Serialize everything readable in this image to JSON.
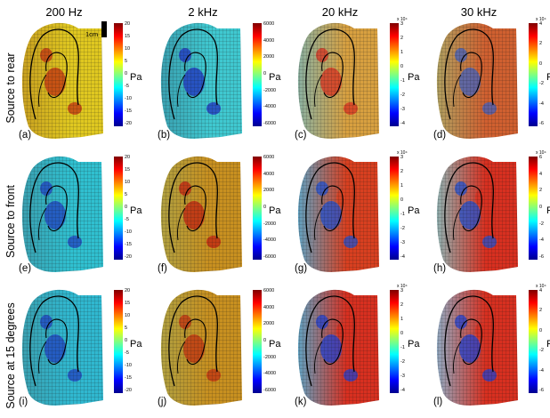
{
  "columns": [
    "200 Hz",
    "2 kHz",
    "20 kHz",
    "30 kHz"
  ],
  "rows": [
    "Source to rear",
    "Source to front",
    "Source at 15 degrees"
  ],
  "scale_bar": "1cm",
  "unit": "Pa",
  "colormap": [
    "#00008f",
    "#0000ff",
    "#0080ff",
    "#00ffff",
    "#80ff80",
    "#ffff00",
    "#ff8000",
    "#ff0000",
    "#800000"
  ],
  "colorbars": [
    {
      "ticks": [
        "20",
        "15",
        "10",
        "5",
        "0",
        "-5",
        "-10",
        "-15",
        "-20"
      ],
      "exponent": ""
    },
    {
      "ticks": [
        "6000",
        "4000",
        "2000",
        "0",
        "-2000",
        "-4000",
        "-6000"
      ],
      "exponent": ""
    },
    {
      "ticks": [
        "3",
        "2",
        "1",
        "0",
        "-1",
        "-2",
        "-3",
        "-4"
      ],
      "exponent": "x 10⁴"
    },
    {
      "ticks": [
        "4",
        "2",
        "0",
        "-2",
        "-4",
        "-6"
      ],
      "exponent": "x 10⁴"
    },
    {
      "ticks": [
        "20",
        "15",
        "10",
        "5",
        "0",
        "-5",
        "-10",
        "-15",
        "-20"
      ],
      "exponent": ""
    },
    {
      "ticks": [
        "6000",
        "4000",
        "2000",
        "0",
        "-2000",
        "-4000",
        "-6000"
      ],
      "exponent": ""
    },
    {
      "ticks": [
        "3",
        "2",
        "1",
        "0",
        "-1",
        "-2",
        "-3",
        "-4"
      ],
      "exponent": "x 10⁴"
    },
    {
      "ticks": [
        "6",
        "4",
        "2",
        "0",
        "-2",
        "-4",
        "-6"
      ],
      "exponent": "x 10⁴"
    },
    {
      "ticks": [
        "20",
        "15",
        "10",
        "5",
        "0",
        "-5",
        "-10",
        "-15",
        "-20"
      ],
      "exponent": ""
    },
    {
      "ticks": [
        "6000",
        "4000",
        "2000",
        "0",
        "-2000",
        "-4000",
        "-6000"
      ],
      "exponent": ""
    },
    {
      "ticks": [
        "3",
        "2",
        "1",
        "0",
        "-1",
        "-2",
        "-3",
        "-4"
      ],
      "exponent": "x 10⁴"
    },
    {
      "ticks": [
        "4",
        "2",
        "0",
        "-2",
        "-4",
        "-6"
      ],
      "exponent": "x 10⁴"
    }
  ],
  "panels": [
    {
      "label": "(a)",
      "palette": [
        "#c8a020",
        "#e0c820",
        "#c03010"
      ]
    },
    {
      "label": "(b)",
      "palette": [
        "#3aa0b0",
        "#40c8d0",
        "#2030c0"
      ]
    },
    {
      "label": "(c)",
      "palette": [
        "#8ab0a0",
        "#d8a040",
        "#d83020"
      ]
    },
    {
      "label": "(d)",
      "palette": [
        "#b0a060",
        "#d06030",
        "#4060c0"
      ]
    },
    {
      "label": "(e)",
      "palette": [
        "#3aa0b0",
        "#30c0d0",
        "#2040c0"
      ]
    },
    {
      "label": "(f)",
      "palette": [
        "#b0a040",
        "#c89020",
        "#c02010"
      ]
    },
    {
      "label": "(g)",
      "palette": [
        "#60a0c0",
        "#d84020",
        "#2050d0"
      ]
    },
    {
      "label": "(h)",
      "palette": [
        "#90b0b0",
        "#d83020",
        "#2050d0"
      ]
    },
    {
      "label": "(i)",
      "palette": [
        "#3aa0b0",
        "#30b8d0",
        "#2040c0"
      ]
    },
    {
      "label": "(j)",
      "palette": [
        "#b0a040",
        "#c89020",
        "#c03010"
      ]
    },
    {
      "label": "(k)",
      "palette": [
        "#60a0c0",
        "#d83020",
        "#2040d0"
      ]
    },
    {
      "label": "(l)",
      "palette": [
        "#90a8c0",
        "#d83020",
        "#2040d0"
      ]
    }
  ]
}
